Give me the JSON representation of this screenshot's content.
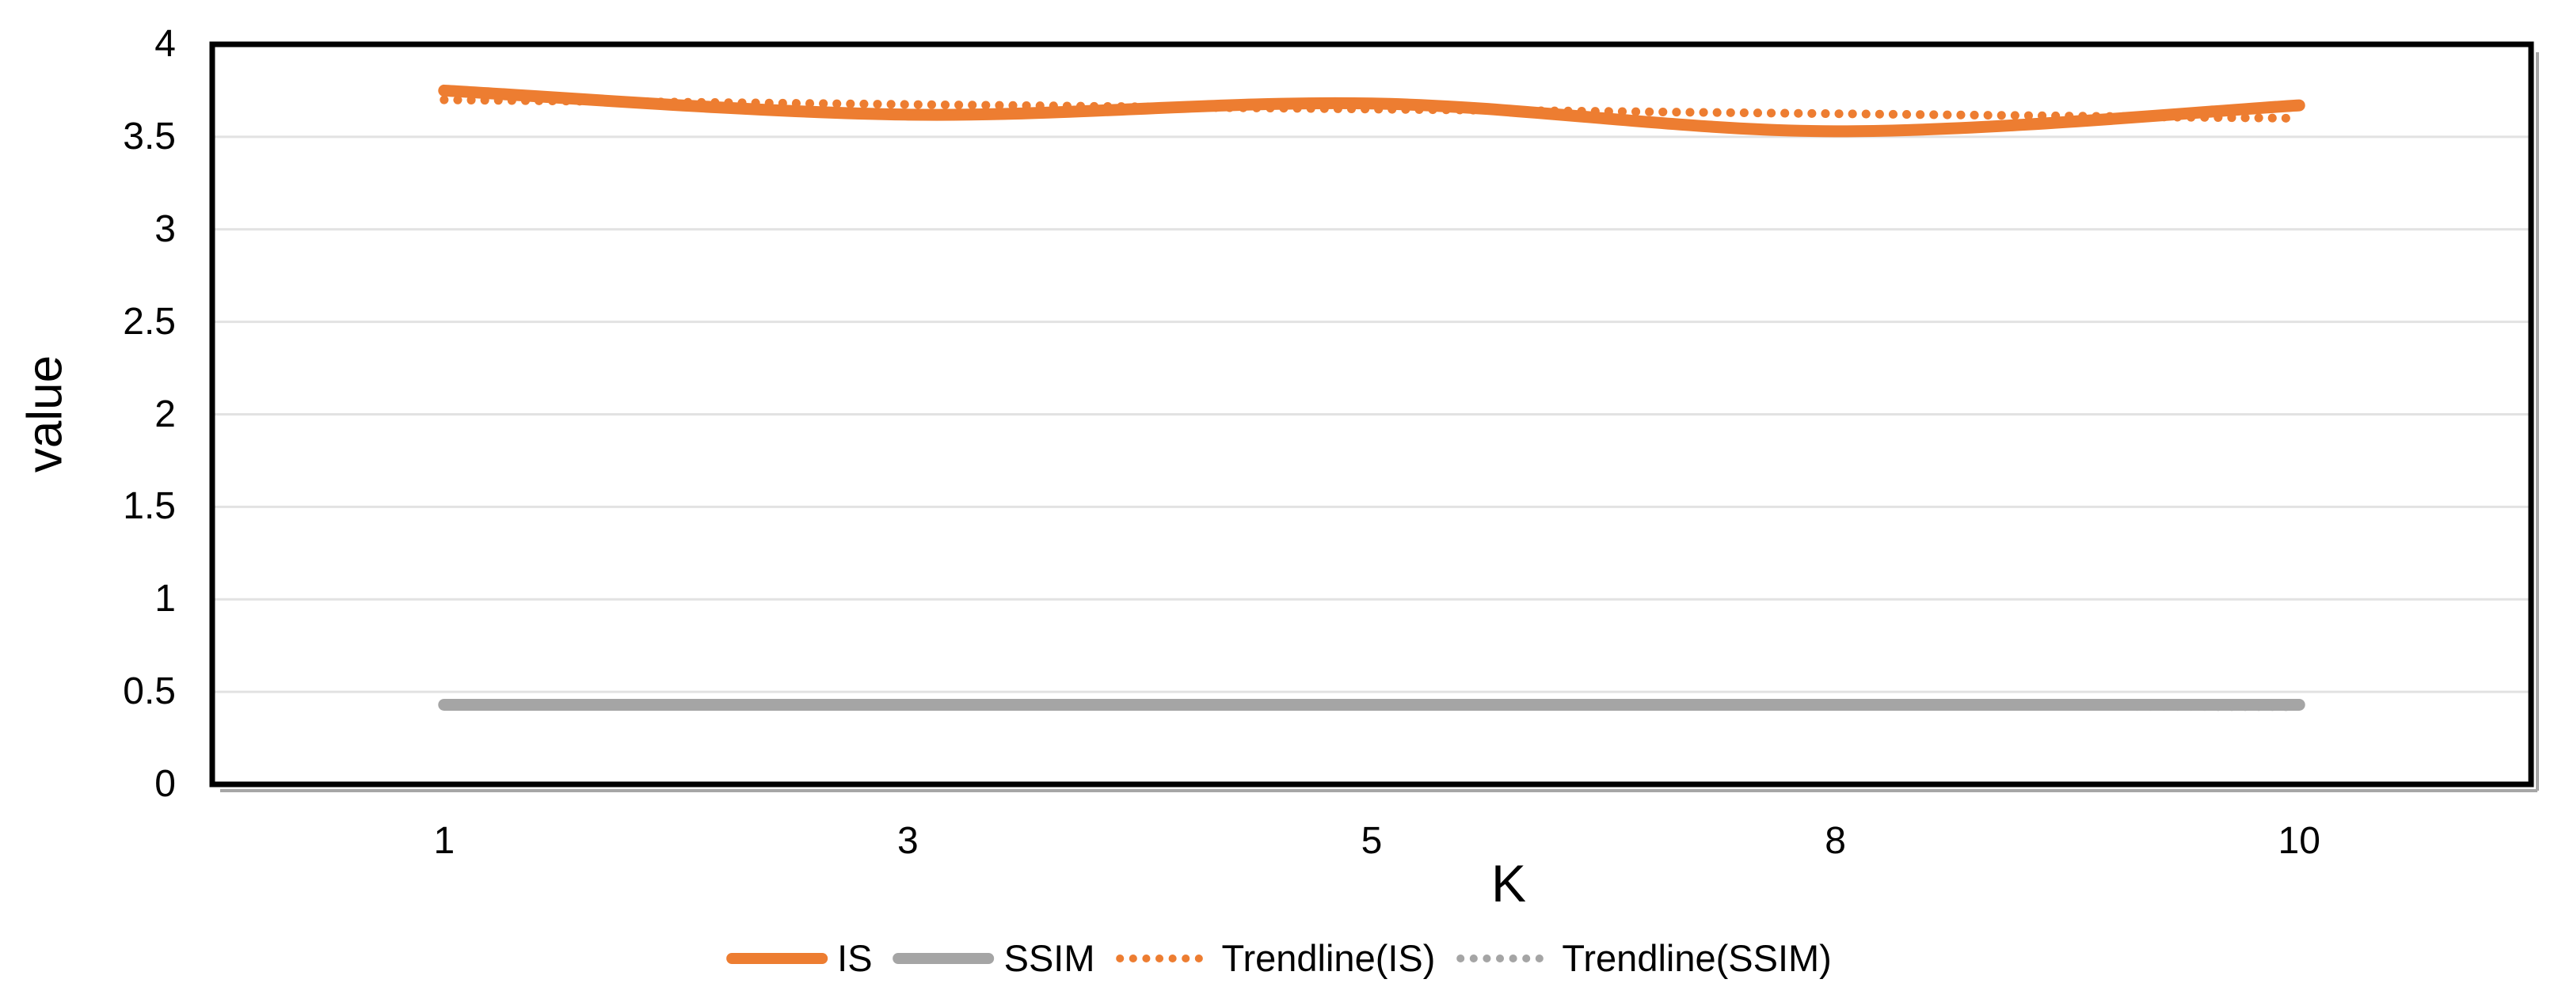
{
  "chart_data": {
    "type": "line",
    "title": "",
    "xlabel": "K",
    "ylabel": "value",
    "categories": [
      "1",
      "3",
      "5",
      "8",
      "10"
    ],
    "series": [
      {
        "name": "IS",
        "color": "#ED7D31",
        "style": "solid",
        "smooth": true,
        "values": [
          3.75,
          3.62,
          3.68,
          3.53,
          3.67
        ]
      },
      {
        "name": "SSIM",
        "color": "#A5A5A5",
        "style": "solid",
        "smooth": true,
        "values": [
          0.43,
          0.43,
          0.43,
          0.43,
          0.43
        ]
      },
      {
        "name": "Trendline(IS)",
        "color": "#ED7D31",
        "style": "dotted",
        "smooth": false,
        "values": [
          3.7,
          3.675,
          3.65,
          3.625,
          3.6
        ]
      },
      {
        "name": "Trendline(SSIM)",
        "color": "#A5A5A5",
        "style": "dotted",
        "smooth": false,
        "values": [
          0.432,
          0.429,
          0.426,
          0.423,
          0.42
        ]
      }
    ],
    "ylim": [
      0,
      4
    ],
    "yticks": [
      0,
      0.5,
      1,
      1.5,
      2,
      2.5,
      3,
      3.5,
      4
    ],
    "ytick_labels": [
      "0",
      "0.5",
      "1",
      "1.5",
      "2",
      "2.5",
      "3",
      "3.5",
      "4"
    ],
    "xtick_labels": [
      "1",
      "3",
      "5",
      "8",
      "10"
    ],
    "grid": "horizontal",
    "legend_position": "bottom",
    "legend_entries": [
      "IS",
      "SSIM",
      "Trendline(IS)",
      "Trendline(SSIM)"
    ]
  },
  "colors": {
    "is_line": "#ED7D31",
    "ssim_line": "#A5A5A5",
    "gridline": "#E2E2E2",
    "plot_border": "#000000",
    "border_shadow": "#A6A6A6",
    "text": "#000000",
    "background": "#FFFFFF"
  }
}
